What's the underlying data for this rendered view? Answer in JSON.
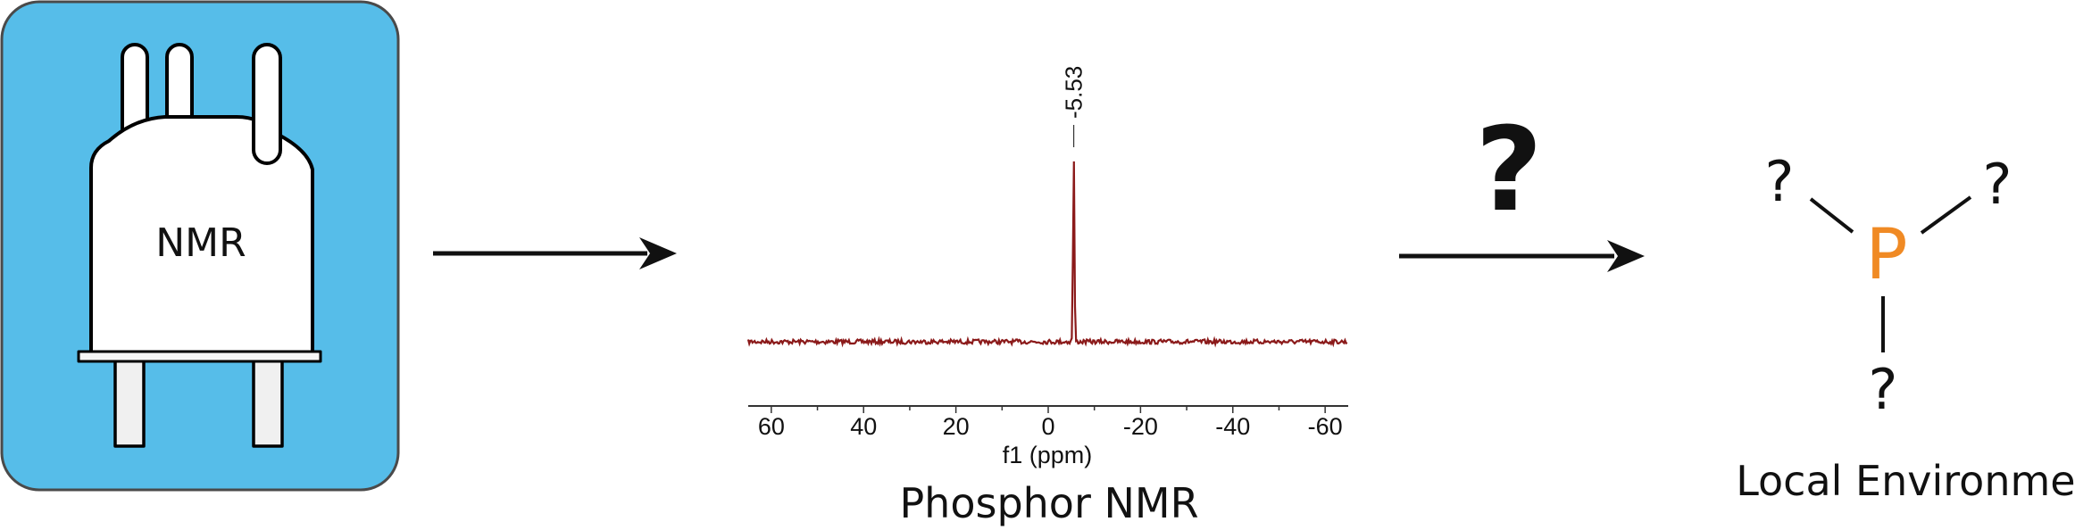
{
  "instrument": {
    "label": "NMR",
    "background_color": "#56bde9",
    "icon": "nmr-spectrometer-icon"
  },
  "spectrum": {
    "caption": "Phosphor NMR",
    "peak_label": "-5.53",
    "line_color": "#8b1a1a"
  },
  "reaction_arrow": {
    "symbol": "?"
  },
  "environment": {
    "caption": "Local Environment",
    "center_atom": "P",
    "center_atom_color": "#f08a24",
    "substituents": [
      "?",
      "?",
      "?"
    ]
  },
  "chart_data": {
    "type": "line",
    "title": "",
    "xlabel": "f1 (ppm)",
    "ylabel": "",
    "xlim": [
      65,
      -65
    ],
    "x_reversed": true,
    "x_ticks": [
      60,
      40,
      20,
      0,
      -20,
      -40,
      -60
    ],
    "x_tick_labels": [
      "60",
      "40",
      "20",
      "0",
      "-20",
      "-40",
      "-60"
    ],
    "peaks": [
      {
        "x": -5.53,
        "label": "-5.53"
      }
    ],
    "grid": false
  }
}
